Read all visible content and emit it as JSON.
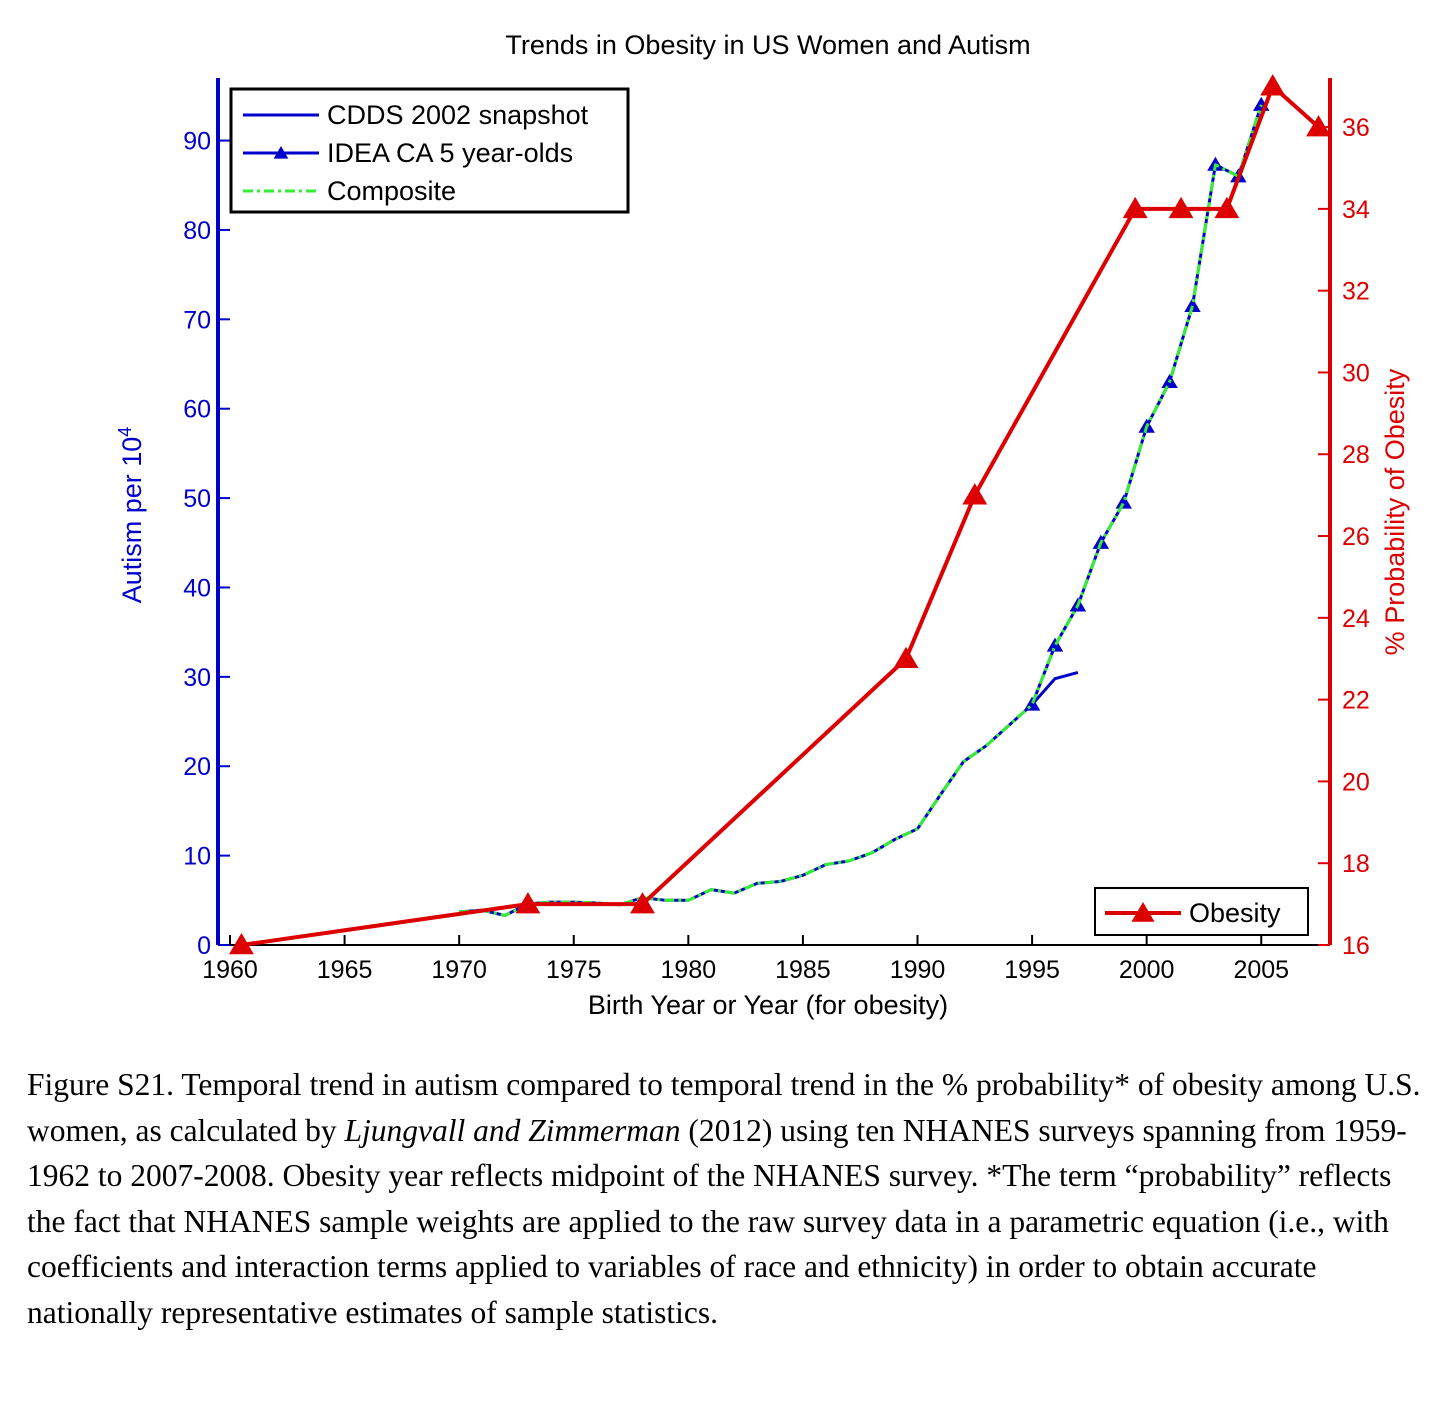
{
  "chart_data": {
    "type": "line",
    "title": "Trends in Obesity in US Women and Autism",
    "xlabel": "Birth Year or Year (for obesity)",
    "xlim": [
      1960,
      2008
    ],
    "xticks": [
      1960,
      1965,
      1970,
      1975,
      1980,
      1985,
      1990,
      1995,
      2000,
      2005
    ],
    "ylabel_left": {
      "text": "Autism per 10",
      "superscript": "4"
    },
    "ylim_left": [
      0,
      97
    ],
    "yticks_left": [
      0,
      10,
      20,
      30,
      40,
      50,
      60,
      70,
      80,
      90
    ],
    "ylabel_right": "% Probability of Obesity",
    "ylim_right": [
      16,
      37.2
    ],
    "yticks_right": [
      16,
      18,
      20,
      22,
      24,
      26,
      28,
      30,
      32,
      34,
      36
    ],
    "axis_colors": {
      "left": "#0000cc",
      "right": "#dd0000"
    },
    "legend_top_left": [
      {
        "label": "CDDS 2002 snapshot",
        "color": "#0000cc",
        "marker": "none",
        "style": "solid"
      },
      {
        "label": "IDEA CA 5 year-olds",
        "color": "#0000cc",
        "marker": "triangle",
        "style": "solid"
      },
      {
        "label": "Composite",
        "color": "#33ee33",
        "marker": "none",
        "style": "dash-dot"
      }
    ],
    "legend_bottom_right": [
      {
        "label": "Obesity",
        "color": "#dd0000",
        "marker": "triangle",
        "style": "solid"
      }
    ],
    "series": [
      {
        "name": "CDDS 2002 snapshot",
        "axis": "left",
        "x": [
          1970,
          1971,
          1972,
          1973,
          1974,
          1975,
          1976,
          1977,
          1978,
          1979,
          1980,
          1981,
          1982,
          1983,
          1984,
          1985,
          1986,
          1987,
          1988,
          1989,
          1990,
          1991,
          1992,
          1993,
          1994,
          1995,
          1996,
          1997
        ],
        "y": [
          3.7,
          3.9,
          3.3,
          4.6,
          4.8,
          4.8,
          4.7,
          4.5,
          5.3,
          5.0,
          5.0,
          6.2,
          5.8,
          6.9,
          7.1,
          7.8,
          9.0,
          9.4,
          10.3,
          11.8,
          13.0,
          16.8,
          20.5,
          22.3,
          24.6,
          26.9,
          29.8,
          30.5
        ]
      },
      {
        "name": "IDEA CA 5 year-olds",
        "axis": "left",
        "x": [
          1995,
          1996,
          1997,
          1998,
          1999,
          2000,
          2001,
          2002,
          2003,
          2004,
          2005
        ],
        "y": [
          26.9,
          33.5,
          38.0,
          45.0,
          49.5,
          58.0,
          63.0,
          71.5,
          87.3,
          86.0,
          94.0
        ]
      },
      {
        "name": "Composite",
        "axis": "left",
        "x": [
          1970,
          1971,
          1972,
          1973,
          1974,
          1975,
          1976,
          1977,
          1978,
          1979,
          1980,
          1981,
          1982,
          1983,
          1984,
          1985,
          1986,
          1987,
          1988,
          1989,
          1990,
          1991,
          1992,
          1993,
          1994,
          1995,
          1996,
          1997,
          1998,
          1999,
          2000,
          2001,
          2002,
          2003,
          2004,
          2005
        ],
        "y": [
          3.7,
          3.9,
          3.3,
          4.6,
          4.8,
          4.8,
          4.7,
          4.5,
          5.3,
          5.0,
          5.0,
          6.2,
          5.8,
          6.9,
          7.1,
          7.8,
          9.0,
          9.4,
          10.3,
          11.8,
          13.0,
          16.8,
          20.5,
          22.3,
          24.6,
          26.9,
          33.5,
          38.0,
          45.0,
          49.5,
          58.0,
          63.0,
          71.5,
          87.3,
          86.0,
          94.0
        ]
      },
      {
        "name": "Obesity",
        "axis": "right",
        "x": [
          1960.5,
          1973,
          1978,
          1989.5,
          1992.5,
          1999.5,
          2001.5,
          2003.5,
          2005.5,
          2007.5
        ],
        "y": [
          16.0,
          17.0,
          17.0,
          23.0,
          27.0,
          34.0,
          34.0,
          34.0,
          37.0,
          36.0
        ]
      }
    ]
  },
  "caption": {
    "prefix": "Figure S21. Temporal trend in autism compared to temporal trend in the % probability* of obesity among U.S. women, as calculated by ",
    "italic": "Ljungvall and Zimmerman",
    "suffix": " (2012) using ten NHANES surveys spanning from 1959-1962 to 2007-2008.   Obesity year reflects midpoint of the NHANES survey.  *The term “probability” reflects the fact that NHANES sample weights are applied to the raw survey data in a parametric equation (i.e., with coefficients and interaction terms applied to variables of race and ethnicity) in order to obtain accurate nationally representative estimates of sample statistics."
  }
}
